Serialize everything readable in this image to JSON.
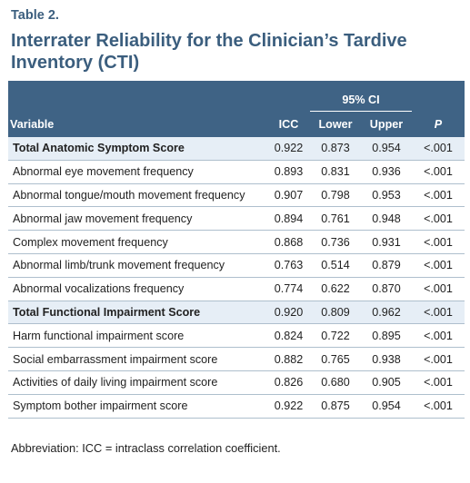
{
  "table": {
    "number": "Table 2.",
    "title": "Interrater Reliability for the Clinician’s Tardive Inventory (CTI)",
    "ci_group": "95% CI",
    "columns": {
      "variable": "Variable",
      "icc": "ICC",
      "lower": "Lower",
      "upper": "Upper",
      "p": "P"
    },
    "rows": [
      {
        "variable": "Total Anatomic Symptom Score",
        "icc": "0.922",
        "lower": "0.873",
        "upper": "0.954",
        "p": "<.001"
      },
      {
        "variable": "Abnormal eye movement frequency",
        "icc": "0.893",
        "lower": "0.831",
        "upper": "0.936",
        "p": "<.001"
      },
      {
        "variable": "Abnormal tongue/mouth movement frequency",
        "icc": "0.907",
        "lower": "0.798",
        "upper": "0.953",
        "p": "<.001"
      },
      {
        "variable": "Abnormal jaw movement frequency",
        "icc": "0.894",
        "lower": "0.761",
        "upper": "0.948",
        "p": "<.001"
      },
      {
        "variable": "Complex movement frequency",
        "icc": "0.868",
        "lower": "0.736",
        "upper": "0.931",
        "p": "<.001"
      },
      {
        "variable": "Abnormal limb/trunk movement frequency",
        "icc": "0.763",
        "lower": "0.514",
        "upper": "0.879",
        "p": "<.001"
      },
      {
        "variable": "Abnormal vocalizations frequency",
        "icc": "0.774",
        "lower": "0.622",
        "upper": "0.870",
        "p": "<.001"
      },
      {
        "variable": "Total Functional Impairment Score",
        "icc": "0.920",
        "lower": "0.809",
        "upper": "0.962",
        "p": "<.001"
      },
      {
        "variable": "Harm functional impairment score",
        "icc": "0.824",
        "lower": "0.722",
        "upper": "0.895",
        "p": "<.001"
      },
      {
        "variable": "Social embarrassment impairment score",
        "icc": "0.882",
        "lower": "0.765",
        "upper": "0.938",
        "p": "<.001"
      },
      {
        "variable": "Activities of daily living impairment score",
        "icc": "0.826",
        "lower": "0.680",
        "upper": "0.905",
        "p": "<.001"
      },
      {
        "variable": "Symptom bother impairment score",
        "icc": "0.922",
        "lower": "0.875",
        "upper": "0.954",
        "p": "<.001"
      }
    ],
    "footnote": "Abbreviation: ICC = intraclass correlation coefficient.",
    "colors": {
      "header_bg": "#3f6385",
      "title_color": "#3b5e7e",
      "total_row_bg": "#e6eef6"
    }
  }
}
